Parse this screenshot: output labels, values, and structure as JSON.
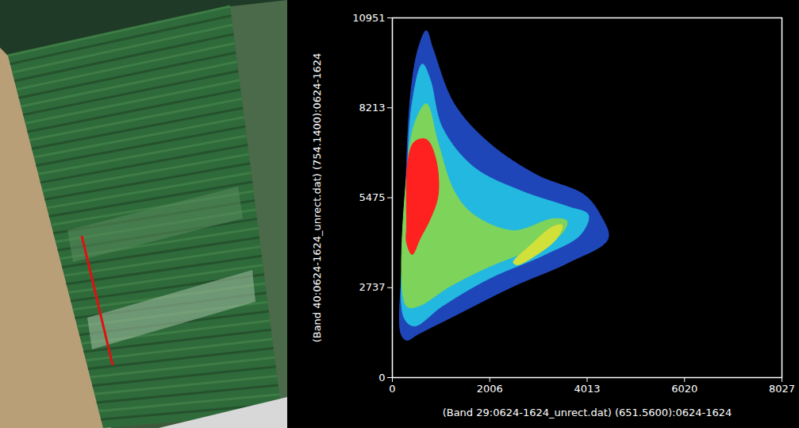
{
  "chart_data": {
    "type": "density",
    "xlabel": "(Band 29:0624-1624_unrect.dat) (651.5600):0624-1624",
    "ylabel": "(Band 40:0624-1624_unrect.dat) (754.1400):0624-1624",
    "xlim": [
      0,
      8027
    ],
    "xticks": [
      0,
      2006,
      4013,
      6020,
      8027
    ],
    "ylim": [
      0,
      10951
    ],
    "yticks": [
      0,
      2737,
      5475,
      8213,
      10951
    ],
    "regions": [
      {
        "color": "#1f46b8",
        "x": [
          179,
          244,
          374,
          537,
          700,
          830,
          1270,
          2002,
          2979,
          3956,
          4282,
          4444,
          3630,
          2491,
          1351,
          537,
          293
        ],
        "y": [
          1329,
          4230,
          8580,
          10031,
          10562,
          10031,
          8339,
          7130,
          6163,
          5559,
          4955,
          4230,
          3505,
          2780,
          1934,
          1329,
          1136
        ]
      },
      {
        "color": "#22b8e0",
        "x": [
          244,
          293,
          407,
          619,
          781,
          1026,
          1677,
          2654,
          3630,
          4037,
          3875,
          3142,
          2002,
          1026,
          456
        ],
        "y": [
          1813,
          5438,
          8339,
          9547,
          9064,
          7614,
          6405,
          5680,
          5197,
          4955,
          4350,
          3746,
          3021,
          2175,
          1571
        ]
      },
      {
        "color": "#7ed35a",
        "x": [
          293,
          326,
          488,
          700,
          944,
          1270,
          1677,
          2491,
          3305,
          3598,
          3468,
          2817,
          2002,
          1188,
          537
        ],
        "y": [
          2175,
          6647,
          7855,
          8339,
          7130,
          5680,
          4955,
          4472,
          4834,
          4762,
          4350,
          3867,
          3384,
          2780,
          2175
        ]
      },
      {
        "color": "#d2e03a",
        "x": [
          2491,
          2817,
          3305,
          3500,
          3386,
          2979,
          2572
        ],
        "y": [
          3505,
          3988,
          4592,
          4641,
          4230,
          3746,
          3432
        ]
      },
      {
        "color": "#ff2020",
        "x": [
          293,
          326,
          456,
          700,
          895,
          944,
          781,
          570,
          407,
          293
        ],
        "y": [
          4592,
          6647,
          7179,
          7251,
          6647,
          5559,
          4834,
          4230,
          3746,
          4109
        ]
      }
    ]
  }
}
